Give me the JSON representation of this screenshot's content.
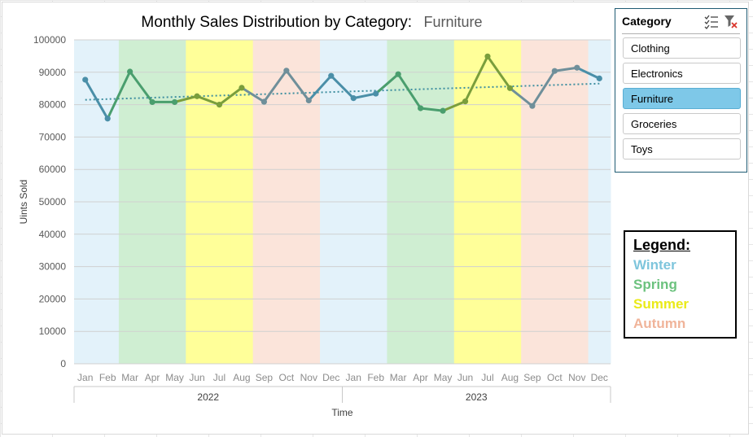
{
  "chart_data": {
    "type": "line",
    "title": "Monthly Sales Distribution by Category:",
    "title_value": "Furniture",
    "xlabel": "Time",
    "ylabel": "Uints Sold",
    "ylim": [
      0,
      100000
    ],
    "y_ticks": [
      "0",
      "10000",
      "20000",
      "30000",
      "40000",
      "50000",
      "60000",
      "70000",
      "80000",
      "90000",
      "100000"
    ],
    "years": [
      "2022",
      "2023"
    ],
    "categories": [
      "Jan",
      "Feb",
      "Mar",
      "Apr",
      "May",
      "Jun",
      "Jul",
      "Aug",
      "Sep",
      "Oct",
      "Nov",
      "Dec",
      "Jan",
      "Feb",
      "Mar",
      "Apr",
      "May",
      "Jun",
      "Jul",
      "Aug",
      "Sep",
      "Oct",
      "Nov",
      "Dec"
    ],
    "series": [
      {
        "values": [
          87700,
          75700,
          90200,
          80800,
          80800,
          82600,
          80000,
          85200,
          80900,
          90500,
          81300,
          88900,
          82000,
          83400,
          89400,
          78900,
          78100,
          81000,
          94900,
          85100,
          79600,
          90400,
          91400,
          88100
        ]
      }
    ],
    "trendline": {
      "type": "linear",
      "start": 81500,
      "end": 86500,
      "style": "dotted"
    },
    "season_bands": [
      "winter",
      "winter",
      "spring",
      "spring",
      "spring",
      "summer",
      "summer",
      "summer",
      "autumn",
      "autumn",
      "autumn",
      "winter",
      "winter",
      "winter",
      "spring",
      "spring",
      "spring",
      "summer",
      "summer",
      "summer",
      "autumn",
      "autumn",
      "autumn",
      "winter"
    ],
    "grid": true,
    "legend_position": "right"
  },
  "colors": {
    "winter_band": "#e3f2fa",
    "spring_band": "#cfeed2",
    "summer_band": "#ffff99",
    "autumn_band": "#fbe4da",
    "winter_line": "#4a8fa8",
    "spring_line": "#4a9e6e",
    "summer_line": "#7a9e3c",
    "autumn_line": "#6f8f9a",
    "trendline": "#3f8fa0"
  },
  "slicer": {
    "title": "Category",
    "multiselect_icon": "multi-select-icon",
    "clear_icon": "clear-filter-icon",
    "items": [
      {
        "label": "Clothing",
        "selected": false
      },
      {
        "label": "Electronics",
        "selected": false
      },
      {
        "label": "Furniture",
        "selected": true
      },
      {
        "label": "Groceries",
        "selected": false
      },
      {
        "label": "Toys",
        "selected": false
      }
    ]
  },
  "legend": {
    "title": "Legend:",
    "entries": [
      {
        "label": "Winter",
        "color": "#7ec5dc"
      },
      {
        "label": "Spring",
        "color": "#6cc27e"
      },
      {
        "label": "Summer",
        "color": "#eaea18"
      },
      {
        "label": "Autumn",
        "color": "#f0b49a"
      }
    ]
  }
}
